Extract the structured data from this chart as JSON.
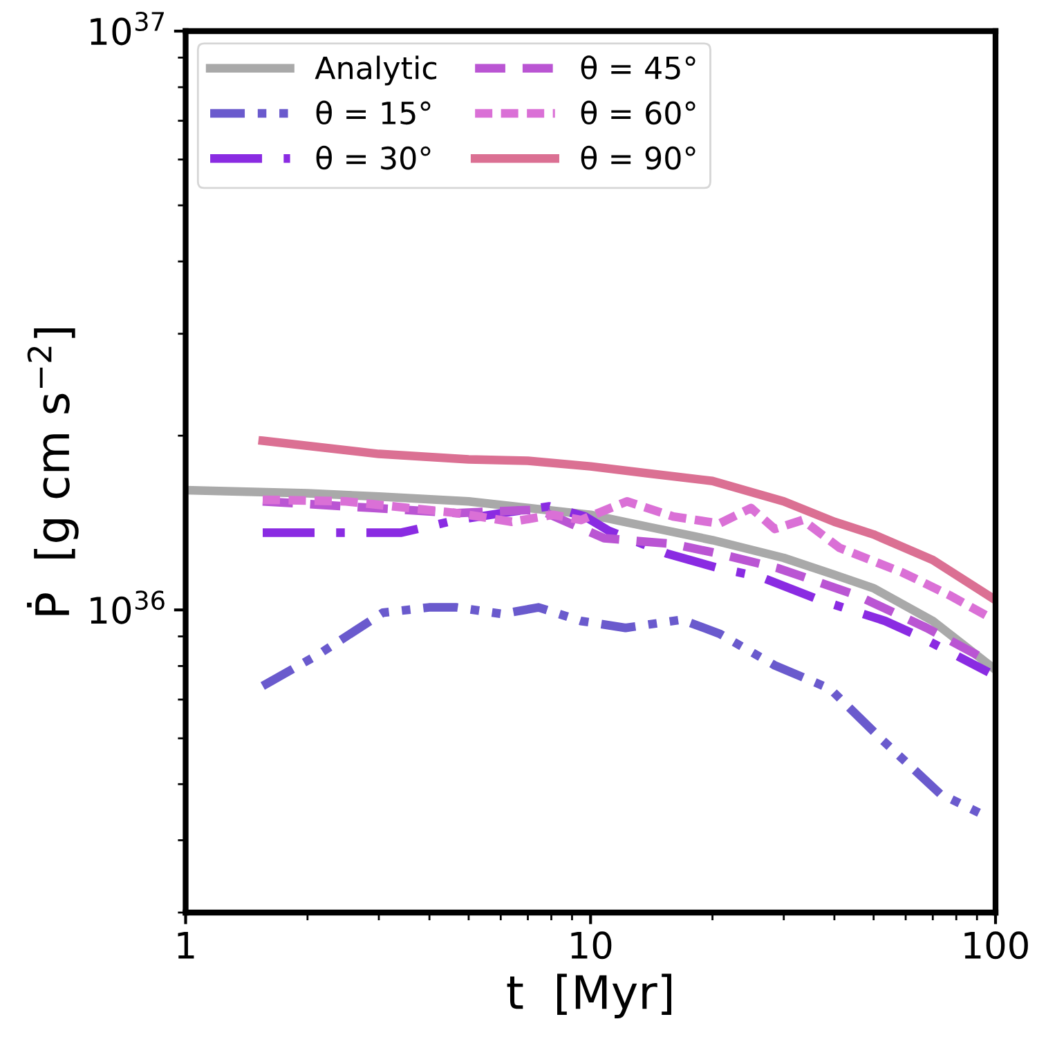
{
  "chart_data": {
    "type": "line",
    "log": "xy",
    "grid": false,
    "legend": "top left",
    "xlabel": "t  [Myr]",
    "ylabel": "Ṗ  [g cm s$^{−2}$]",
    "xlim": [
      1,
      100
    ],
    "xticks": [
      1,
      10,
      100
    ],
    "ylim": [
      3e+35,
      1e+37
    ],
    "yticks": [
      {
        "value": 1e+36,
        "label": "10$^{36}$"
      },
      {
        "value": 1e+37,
        "label": "10$^{37}$"
      }
    ],
    "series": [
      {
        "name": "Analytic",
        "color": "#a9a9a9",
        "line_style": "solid",
        "x": [
          1,
          2,
          3,
          5,
          7,
          10,
          14,
          20,
          30,
          40,
          50,
          70,
          100
        ],
        "values": [
          1.61e+36,
          1.59e+36,
          1.57e+36,
          1.54e+36,
          1.5e+36,
          1.46e+36,
          1.39e+36,
          1.32e+36,
          1.23e+36,
          1.15e+36,
          1.09e+36,
          9.57e+35,
          7.88e+35
        ]
      },
      {
        "name": "θ = 15°",
        "color": "#6a5acd",
        "line_style": "dashdotdot",
        "x": [
          1.55,
          2.13,
          3.07,
          3.99,
          4.67,
          6.05,
          7.44,
          9.47,
          12.2,
          16.8,
          20.8,
          28.5,
          39.0,
          52.0,
          73.0,
          96.2
        ],
        "values": [
          7.39e+35,
          8.38e+35,
          9.89e+35,
          1.01e+36,
          1.01e+36,
          9.84e+35,
          1.01e+36,
          9.57e+35,
          9.31e+35,
          9.62e+35,
          9.1e+35,
          8.02e+35,
          7.31e+35,
          6e+35,
          4.81e+35,
          4.38e+35
        ]
      },
      {
        "name": "θ = 30°",
        "color": "#8a2be2",
        "line_style": "dashdot",
        "x": [
          1.55,
          3.41,
          4.67,
          6.05,
          7.91,
          9.69,
          11.1,
          15.5,
          20.8,
          26.3,
          36.8,
          53.4,
          65.7,
          96.2
        ],
        "values": [
          1.36e+36,
          1.36e+36,
          1.43e+36,
          1.47e+36,
          1.51e+36,
          1.45e+36,
          1.37e+36,
          1.25e+36,
          1.18e+36,
          1.14e+36,
          1.04e+36,
          9.57e+35,
          8.96e+35,
          7.8e+35
        ]
      },
      {
        "name": "θ = 45°",
        "color": "#ba55d3",
        "line_style": "dashed",
        "x": [
          1.55,
          2.91,
          4.67,
          7.44,
          10.8,
          16.0,
          20.8,
          29.1,
          45.4,
          67.6,
          96.2
        ],
        "values": [
          1.54e+36,
          1.5e+36,
          1.47e+36,
          1.49e+36,
          1.33e+36,
          1.3e+36,
          1.25e+36,
          1.18e+36,
          1.06e+36,
          9.31e+35,
          8.15e+35
        ]
      },
      {
        "name": "θ = 60°",
        "color": "#da70d6",
        "line_style": "dotted",
        "x": [
          1.55,
          2.49,
          4.67,
          6.39,
          8.08,
          9.47,
          12.3,
          16.0,
          20.8,
          24.9,
          28.5,
          33.4,
          41.2,
          59.0,
          77.0,
          96.2
        ],
        "values": [
          1.55e+36,
          1.54e+36,
          1.47e+36,
          1.42e+36,
          1.46e+36,
          1.43e+36,
          1.54e+36,
          1.45e+36,
          1.41e+36,
          1.5e+36,
          1.38e+36,
          1.43e+36,
          1.28e+36,
          1.16e+36,
          1.06e+36,
          9.73e+35
        ]
      },
      {
        "name": "θ = 90°",
        "color": "#db7093",
        "line_style": "solid",
        "x": [
          1.55,
          3,
          5,
          7,
          10,
          14,
          20,
          30,
          40,
          50,
          70,
          100
        ],
        "values": [
          1.96e+36,
          1.86e+36,
          1.82e+36,
          1.81e+36,
          1.77e+36,
          1.72e+36,
          1.67e+36,
          1.54e+36,
          1.42e+36,
          1.35e+36,
          1.22e+36,
          1.04e+36
        ]
      }
    ]
  }
}
